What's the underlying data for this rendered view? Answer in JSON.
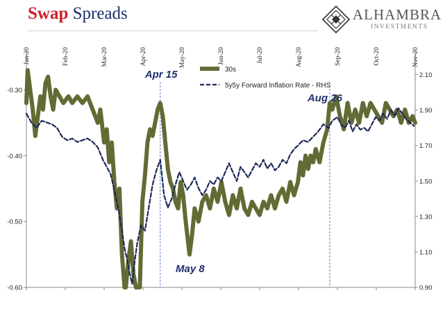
{
  "header": {
    "title_part1": "Swap",
    "title_part2": "Spreads"
  },
  "logo": {
    "name": "ALHAMBRA",
    "subtitle": "INVESTMENTS"
  },
  "chart_data": {
    "type": "line",
    "x_axis": {
      "tick_labels": [
        "Jan-20",
        "Feb-20",
        "Mar-20",
        "Apr-20",
        "May-20",
        "Jun-20",
        "Jul-20",
        "Aug-20",
        "Sep-20",
        "Oct-20",
        "Nov-20"
      ],
      "range": [
        "2020-01-01",
        "2020-11-01"
      ]
    },
    "y_axis_left": {
      "range": [
        -0.6,
        -0.25
      ],
      "tick_labels": [
        "-0.30",
        "-0.40",
        "-0.50",
        "-0.60"
      ]
    },
    "y_axis_right": {
      "range": [
        0.9,
        2.2
      ],
      "tick_labels": [
        "2.10",
        "1.90",
        "1.70",
        "1.50",
        "1.30",
        "1.10",
        "0.90"
      ]
    },
    "legend": {
      "placement": "top-center",
      "entries": [
        "30s",
        "5y5y Forward Inflation Rate - RHS"
      ]
    },
    "series": [
      {
        "name": "30s",
        "axis": "left",
        "color": "#636b34",
        "style": "thick-solid",
        "points": [
          [
            "2020-01-01",
            -0.32
          ],
          [
            "2020-01-02",
            -0.27
          ],
          [
            "2020-01-04",
            -0.3
          ],
          [
            "2020-01-06",
            -0.33
          ],
          [
            "2020-01-08",
            -0.37
          ],
          [
            "2020-01-10",
            -0.34
          ],
          [
            "2020-01-12",
            -0.31
          ],
          [
            "2020-01-14",
            -0.33
          ],
          [
            "2020-01-16",
            -0.29
          ],
          [
            "2020-01-18",
            -0.28
          ],
          [
            "2020-01-20",
            -0.31
          ],
          [
            "2020-01-22",
            -0.33
          ],
          [
            "2020-01-24",
            -0.3
          ],
          [
            "2020-01-27",
            -0.31
          ],
          [
            "2020-01-30",
            -0.32
          ],
          [
            "2020-02-03",
            -0.31
          ],
          [
            "2020-02-06",
            -0.32
          ],
          [
            "2020-02-10",
            -0.31
          ],
          [
            "2020-02-14",
            -0.32
          ],
          [
            "2020-02-18",
            -0.31
          ],
          [
            "2020-02-22",
            -0.33
          ],
          [
            "2020-02-26",
            -0.35
          ],
          [
            "2020-02-28",
            -0.33
          ],
          [
            "2020-03-02",
            -0.38
          ],
          [
            "2020-03-04",
            -0.36
          ],
          [
            "2020-03-06",
            -0.41
          ],
          [
            "2020-03-08",
            -0.38
          ],
          [
            "2020-03-10",
            -0.44
          ],
          [
            "2020-03-12",
            -0.48
          ],
          [
            "2020-03-14",
            -0.45
          ],
          [
            "2020-03-16",
            -0.55
          ],
          [
            "2020-03-18",
            -0.6
          ],
          [
            "2020-03-19",
            -0.6
          ],
          [
            "2020-03-21",
            -0.56
          ],
          [
            "2020-03-23",
            -0.53
          ],
          [
            "2020-03-25",
            -0.58
          ],
          [
            "2020-03-27",
            -0.6
          ],
          [
            "2020-03-30",
            -0.6
          ],
          [
            "2020-04-01",
            -0.47
          ],
          [
            "2020-04-03",
            -0.43
          ],
          [
            "2020-04-05",
            -0.38
          ],
          [
            "2020-04-07",
            -0.36
          ],
          [
            "2020-04-09",
            -0.37
          ],
          [
            "2020-04-11",
            -0.35
          ],
          [
            "2020-04-13",
            -0.33
          ],
          [
            "2020-04-15",
            -0.32
          ],
          [
            "2020-04-17",
            -0.34
          ],
          [
            "2020-04-19",
            -0.38
          ],
          [
            "2020-04-21",
            -0.42
          ],
          [
            "2020-04-23",
            -0.44
          ],
          [
            "2020-04-25",
            -0.45
          ],
          [
            "2020-04-27",
            -0.47
          ],
          [
            "2020-04-29",
            -0.48
          ],
          [
            "2020-05-01",
            -0.44
          ],
          [
            "2020-05-03",
            -0.46
          ],
          [
            "2020-05-05",
            -0.5
          ],
          [
            "2020-05-08",
            -0.55
          ],
          [
            "2020-05-10",
            -0.52
          ],
          [
            "2020-05-12",
            -0.48
          ],
          [
            "2020-05-15",
            -0.5
          ],
          [
            "2020-05-18",
            -0.47
          ],
          [
            "2020-05-21",
            -0.46
          ],
          [
            "2020-05-24",
            -0.48
          ],
          [
            "2020-05-27",
            -0.45
          ],
          [
            "2020-05-30",
            -0.47
          ],
          [
            "2020-06-02",
            -0.44
          ],
          [
            "2020-06-05",
            -0.47
          ],
          [
            "2020-06-08",
            -0.49
          ],
          [
            "2020-06-11",
            -0.46
          ],
          [
            "2020-06-14",
            -0.48
          ],
          [
            "2020-06-17",
            -0.45
          ],
          [
            "2020-06-20",
            -0.48
          ],
          [
            "2020-06-23",
            -0.49
          ],
          [
            "2020-06-26",
            -0.47
          ],
          [
            "2020-06-29",
            -0.48
          ],
          [
            "2020-07-02",
            -0.49
          ],
          [
            "2020-07-05",
            -0.47
          ],
          [
            "2020-07-08",
            -0.48
          ],
          [
            "2020-07-11",
            -0.46
          ],
          [
            "2020-07-14",
            -0.48
          ],
          [
            "2020-07-17",
            -0.46
          ],
          [
            "2020-07-20",
            -0.45
          ],
          [
            "2020-07-23",
            -0.47
          ],
          [
            "2020-07-26",
            -0.44
          ],
          [
            "2020-07-29",
            -0.46
          ],
          [
            "2020-08-01",
            -0.44
          ],
          [
            "2020-08-03",
            -0.41
          ],
          [
            "2020-08-05",
            -0.43
          ],
          [
            "2020-08-07",
            -0.4
          ],
          [
            "2020-08-09",
            -0.42
          ],
          [
            "2020-08-11",
            -0.4
          ],
          [
            "2020-08-13",
            -0.41
          ],
          [
            "2020-08-15",
            -0.39
          ],
          [
            "2020-08-18",
            -0.41
          ],
          [
            "2020-08-21",
            -0.38
          ],
          [
            "2020-08-24",
            -0.36
          ],
          [
            "2020-08-26",
            -0.32
          ],
          [
            "2020-08-28",
            -0.33
          ],
          [
            "2020-08-31",
            -0.31
          ],
          [
            "2020-09-03",
            -0.34
          ],
          [
            "2020-09-06",
            -0.36
          ],
          [
            "2020-09-09",
            -0.32
          ],
          [
            "2020-09-12",
            -0.35
          ],
          [
            "2020-09-15",
            -0.33
          ],
          [
            "2020-09-18",
            -0.35
          ],
          [
            "2020-09-21",
            -0.32
          ],
          [
            "2020-09-24",
            -0.34
          ],
          [
            "2020-09-27",
            -0.32
          ],
          [
            "2020-09-30",
            -0.33
          ],
          [
            "2020-10-03",
            -0.34
          ],
          [
            "2020-10-06",
            -0.35
          ],
          [
            "2020-10-09",
            -0.32
          ],
          [
            "2020-10-12",
            -0.33
          ],
          [
            "2020-10-15",
            -0.34
          ],
          [
            "2020-10-18",
            -0.33
          ],
          [
            "2020-10-21",
            -0.35
          ],
          [
            "2020-10-24",
            -0.33
          ],
          [
            "2020-10-27",
            -0.35
          ],
          [
            "2020-10-30",
            -0.34
          ],
          [
            "2020-11-01",
            -0.35
          ]
        ]
      },
      {
        "name": "5y5y Forward Inflation Rate - RHS",
        "axis": "right",
        "color": "#1b2858",
        "style": "dashed",
        "points": [
          [
            "2020-01-01",
            1.88
          ],
          [
            "2020-01-05",
            1.83
          ],
          [
            "2020-01-09",
            1.8
          ],
          [
            "2020-01-13",
            1.84
          ],
          [
            "2020-01-17",
            1.83
          ],
          [
            "2020-01-21",
            1.82
          ],
          [
            "2020-01-25",
            1.8
          ],
          [
            "2020-01-29",
            1.75
          ],
          [
            "2020-02-02",
            1.73
          ],
          [
            "2020-02-06",
            1.74
          ],
          [
            "2020-02-10",
            1.72
          ],
          [
            "2020-02-14",
            1.73
          ],
          [
            "2020-02-18",
            1.74
          ],
          [
            "2020-02-22",
            1.72
          ],
          [
            "2020-02-26",
            1.69
          ],
          [
            "2020-03-01",
            1.62
          ],
          [
            "2020-03-04",
            1.58
          ],
          [
            "2020-03-07",
            1.54
          ],
          [
            "2020-03-10",
            1.45
          ],
          [
            "2020-03-13",
            1.35
          ],
          [
            "2020-03-16",
            1.22
          ],
          [
            "2020-03-18",
            1.12
          ],
          [
            "2020-03-20",
            1.06
          ],
          [
            "2020-03-22",
            0.98
          ],
          [
            "2020-03-24",
            0.92
          ],
          [
            "2020-03-26",
            1.05
          ],
          [
            "2020-03-28",
            1.15
          ],
          [
            "2020-03-31",
            1.25
          ],
          [
            "2020-04-03",
            1.22
          ],
          [
            "2020-04-06",
            1.35
          ],
          [
            "2020-04-09",
            1.48
          ],
          [
            "2020-04-12",
            1.56
          ],
          [
            "2020-04-15",
            1.62
          ],
          [
            "2020-04-18",
            1.42
          ],
          [
            "2020-04-21",
            1.35
          ],
          [
            "2020-04-24",
            1.4
          ],
          [
            "2020-04-27",
            1.48
          ],
          [
            "2020-04-30",
            1.55
          ],
          [
            "2020-05-03",
            1.5
          ],
          [
            "2020-05-06",
            1.45
          ],
          [
            "2020-05-09",
            1.48
          ],
          [
            "2020-05-12",
            1.52
          ],
          [
            "2020-05-15",
            1.46
          ],
          [
            "2020-05-18",
            1.42
          ],
          [
            "2020-05-21",
            1.45
          ],
          [
            "2020-05-24",
            1.5
          ],
          [
            "2020-05-27",
            1.48
          ],
          [
            "2020-05-30",
            1.52
          ],
          [
            "2020-06-02",
            1.5
          ],
          [
            "2020-06-05",
            1.55
          ],
          [
            "2020-06-08",
            1.6
          ],
          [
            "2020-06-11",
            1.55
          ],
          [
            "2020-06-14",
            1.5
          ],
          [
            "2020-06-17",
            1.58
          ],
          [
            "2020-06-20",
            1.55
          ],
          [
            "2020-06-23",
            1.52
          ],
          [
            "2020-06-26",
            1.56
          ],
          [
            "2020-06-29",
            1.6
          ],
          [
            "2020-07-02",
            1.58
          ],
          [
            "2020-07-05",
            1.62
          ],
          [
            "2020-07-08",
            1.57
          ],
          [
            "2020-07-11",
            1.6
          ],
          [
            "2020-07-14",
            1.56
          ],
          [
            "2020-07-17",
            1.58
          ],
          [
            "2020-07-20",
            1.62
          ],
          [
            "2020-07-23",
            1.6
          ],
          [
            "2020-07-26",
            1.65
          ],
          [
            "2020-07-29",
            1.68
          ],
          [
            "2020-08-01",
            1.7
          ],
          [
            "2020-08-05",
            1.73
          ],
          [
            "2020-08-09",
            1.72
          ],
          [
            "2020-08-13",
            1.75
          ],
          [
            "2020-08-17",
            1.78
          ],
          [
            "2020-08-21",
            1.82
          ],
          [
            "2020-08-25",
            1.8
          ],
          [
            "2020-08-28",
            1.84
          ],
          [
            "2020-09-01",
            1.86
          ],
          [
            "2020-09-04",
            1.82
          ],
          [
            "2020-09-07",
            1.8
          ],
          [
            "2020-09-10",
            1.84
          ],
          [
            "2020-09-13",
            1.78
          ],
          [
            "2020-09-16",
            1.82
          ],
          [
            "2020-09-19",
            1.79
          ],
          [
            "2020-09-22",
            1.8
          ],
          [
            "2020-09-25",
            1.78
          ],
          [
            "2020-09-28",
            1.82
          ],
          [
            "2020-10-01",
            1.86
          ],
          [
            "2020-10-04",
            1.84
          ],
          [
            "2020-10-07",
            1.88
          ],
          [
            "2020-10-10",
            1.85
          ],
          [
            "2020-10-13",
            1.9
          ],
          [
            "2020-10-16",
            1.87
          ],
          [
            "2020-10-19",
            1.91
          ],
          [
            "2020-10-22",
            1.88
          ],
          [
            "2020-10-25",
            1.85
          ],
          [
            "2020-10-28",
            1.83
          ],
          [
            "2020-10-31",
            1.81
          ]
        ]
      }
    ],
    "annotations": [
      {
        "label": "Apr 15",
        "date": "2020-04-15"
      },
      {
        "label": "May 8",
        "date": "2020-05-08"
      },
      {
        "label": "Aug 26",
        "date": "2020-08-26"
      }
    ]
  }
}
